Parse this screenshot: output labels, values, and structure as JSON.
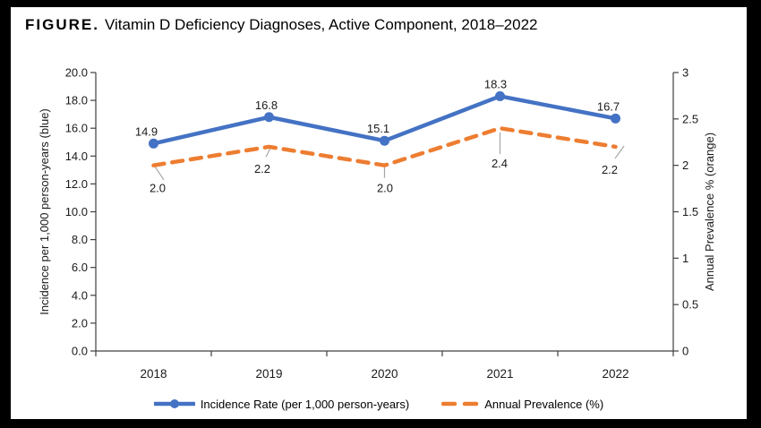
{
  "title": {
    "tag": "FIGURE.",
    "text": "Vitamin D Deficiency Diagnoses, Active Component, 2018–2022"
  },
  "legend": [
    {
      "label": "Incidence Rate (per 1,000 person-years)",
      "color": "#4472C4",
      "style": "solid-line-with-marker"
    },
    {
      "label": "Annual Prevalence (%)",
      "color": "#ED7D31",
      "style": "dashed-line"
    }
  ],
  "colors": {
    "incidence": "#4472C4",
    "prevalence": "#ED7D31",
    "axis": "#404040",
    "leader": "#A6A6A6",
    "frame": "#000000",
    "background": "#FFFFFF"
  },
  "chart_data": {
    "type": "line",
    "title": "FIGURE. Vitamin D Deficiency Diagnoses, Active Component, 2018–2022",
    "categories": [
      "2018",
      "2019",
      "2020",
      "2021",
      "2022"
    ],
    "series": [
      {
        "name": "Incidence Rate (per 1,000 person-years)",
        "axis": "left",
        "color": "#4472C4",
        "line_style": "solid",
        "marker": "circle",
        "values": [
          14.9,
          16.8,
          15.1,
          18.3,
          16.7
        ],
        "label_decimals": 1
      },
      {
        "name": "Annual Prevalence (%)",
        "axis": "right",
        "color": "#ED7D31",
        "line_style": "dashed",
        "marker": "none",
        "values": [
          2.0,
          2.2,
          2.0,
          2.4,
          2.2
        ],
        "label_decimals": 1
      }
    ],
    "left_axis": {
      "title": "Incidence per 1,000 person-years (blue)",
      "min": 0,
      "max": 20,
      "step": 2,
      "decimals": 1
    },
    "right_axis": {
      "title": "Annual Prevalence % (orange)",
      "min": 0,
      "max": 3,
      "step": 0.5
    },
    "x_axis": {
      "tick_placement": "between-categories"
    },
    "grid": false,
    "data_labels": true,
    "legend_position": "bottom"
  }
}
